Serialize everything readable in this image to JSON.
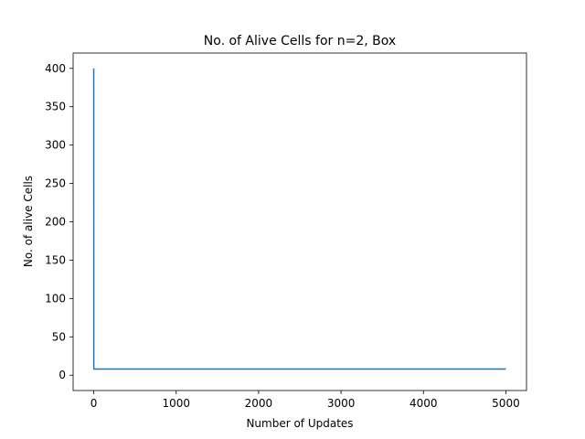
{
  "chart_data": {
    "type": "line",
    "title": "No. of Alive Cells for n=2, Box",
    "xlabel": "Number of Updates",
    "ylabel": "No. of alive Cells",
    "xlim": [
      -250,
      5250
    ],
    "ylim": [
      -20,
      420
    ],
    "xticks": [
      0,
      1000,
      2000,
      3000,
      4000,
      5000
    ],
    "yticks": [
      0,
      50,
      100,
      150,
      200,
      250,
      300,
      350,
      400
    ],
    "grid": false,
    "series": [
      {
        "color": "#1f77b4",
        "x": [
          0,
          1,
          5000
        ],
        "y": [
          400,
          8,
          8
        ]
      }
    ]
  }
}
